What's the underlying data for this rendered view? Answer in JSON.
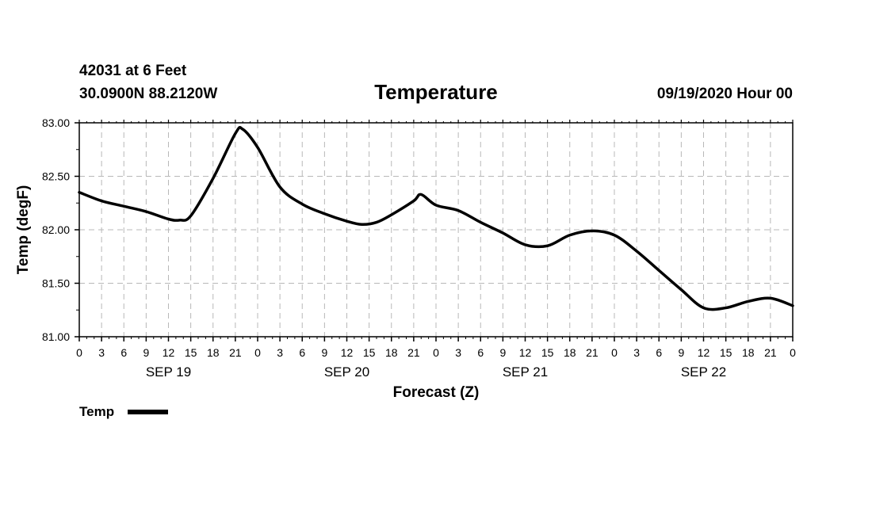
{
  "header": {
    "station_line": "42031 at 6 Feet",
    "location_line": "30.0900N 88.2120W",
    "title": "Temperature",
    "date_line": "09/19/2020 Hour 00"
  },
  "chart_data": {
    "type": "line",
    "title": "Temperature",
    "xlabel": "Forecast (Z)",
    "ylabel": "Temp (degF)",
    "ylim": [
      81.0,
      83.0
    ],
    "y_ticks": [
      "83.00",
      "82.50",
      "82.00",
      "81.50",
      "81.00"
    ],
    "y_tick_values": [
      83.0,
      82.5,
      82.0,
      81.5,
      81.0
    ],
    "x_range_hours": [
      0,
      96
    ],
    "x_tick_labels": [
      "0",
      "3",
      "6",
      "9",
      "12",
      "15",
      "18",
      "21",
      "0",
      "3",
      "6",
      "9",
      "12",
      "15",
      "18",
      "21",
      "0",
      "3",
      "6",
      "9",
      "12",
      "15",
      "18",
      "21",
      "0",
      "3",
      "6",
      "9",
      "12",
      "15",
      "18",
      "21",
      "0"
    ],
    "day_labels": [
      {
        "label": "SEP 19",
        "hour": 12
      },
      {
        "label": "SEP 20",
        "hour": 36
      },
      {
        "label": "SEP 21",
        "hour": 60
      },
      {
        "label": "SEP 22",
        "hour": 84
      }
    ],
    "grid": true,
    "legend": {
      "position": "bottom-left",
      "entries": [
        "Temp"
      ]
    },
    "series": [
      {
        "name": "Temp",
        "color": "#000000",
        "x": [
          0,
          3,
          6,
          9,
          12,
          13.5,
          15,
          18,
          21,
          22,
          24,
          27,
          30,
          33,
          36,
          38,
          40,
          42,
          45,
          46,
          48,
          51,
          54,
          57,
          60,
          63,
          66,
          69,
          72,
          75,
          78,
          81,
          84,
          87,
          90,
          93,
          96
        ],
        "values": [
          82.35,
          82.27,
          82.22,
          82.17,
          82.1,
          82.09,
          82.13,
          82.48,
          82.9,
          82.94,
          82.77,
          82.4,
          82.24,
          82.15,
          82.08,
          82.05,
          82.07,
          82.14,
          82.27,
          82.33,
          82.23,
          82.18,
          82.07,
          81.97,
          81.86,
          81.85,
          81.95,
          81.99,
          81.95,
          81.8,
          81.62,
          81.44,
          81.27,
          81.27,
          81.33,
          81.36,
          81.29
        ]
      }
    ]
  }
}
